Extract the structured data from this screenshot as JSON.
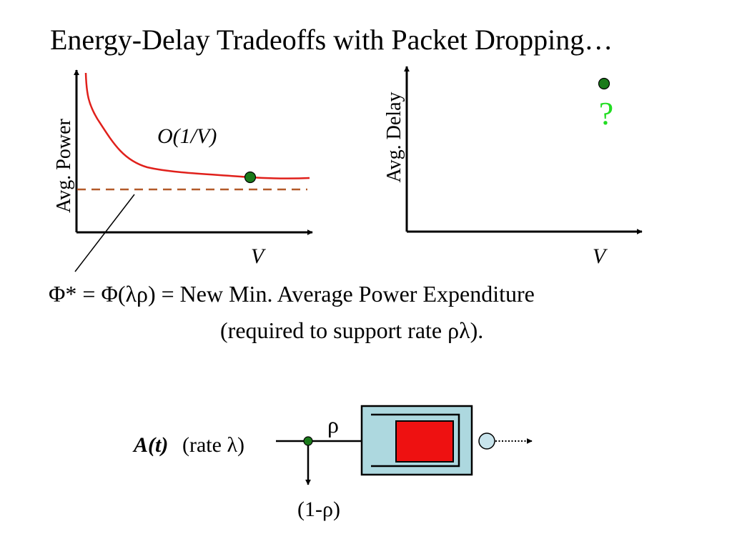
{
  "title": "Energy-Delay Tradeoffs with Packet Dropping…",
  "colors": {
    "curve": "#e0201b",
    "bound_line": "#b35a2a",
    "marker": "#1a7a1a",
    "question": "#22dd22",
    "queue_box_fill": "#add8df",
    "queue_fill": "#ee1111",
    "server_fill": "#c8e4ec"
  },
  "power_plot": {
    "y_label": "Avg. Power",
    "x_label": "V",
    "curve_label": "O(1/V)"
  },
  "delay_plot": {
    "y_label": "Avg. Delay",
    "x_label": "V",
    "unknown_marker": "?"
  },
  "caption": {
    "line1": "Φ* = Φ(λρ) = New Min. Average Power Expenditure",
    "line2": "(required to support rate ρλ)."
  },
  "queue_diagram": {
    "arrival": "A(t)",
    "rate": "(rate λ)",
    "admit_prob": "ρ",
    "drop_prob": "(1-ρ)"
  }
}
